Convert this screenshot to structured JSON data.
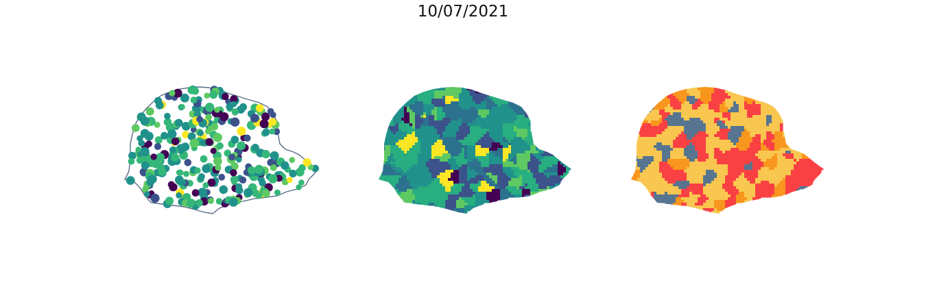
{
  "figure": {
    "title": "10/07/2021"
  },
  "panels": [
    {
      "kind": "points",
      "outline_color": "#5a6b85",
      "palette": [
        "#440154",
        "#3b528b",
        "#21918c",
        "#35b779",
        "#5ec962",
        "#fde725"
      ]
    },
    {
      "kind": "choropleth",
      "palette": [
        "#440154",
        "#3b528b",
        "#2c728e",
        "#21918c",
        "#28ae80",
        "#5ec962",
        "#fde725"
      ]
    },
    {
      "kind": "choropleth-categories",
      "palette": [
        "#f9c74f",
        "#f94144",
        "#577590",
        "#f8961e"
      ]
    }
  ]
}
